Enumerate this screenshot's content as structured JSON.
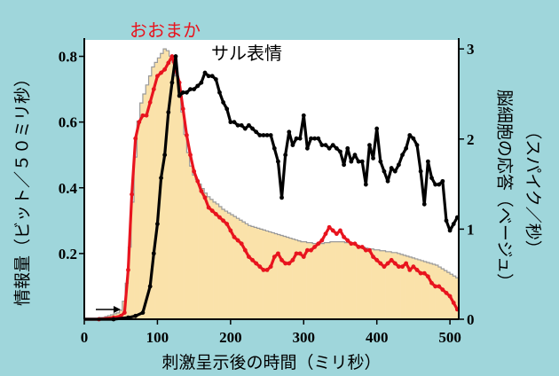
{
  "chart_data": {
    "type": "line",
    "xlabel": "刺激呈示後の時間（ミリ秒）",
    "ylabel_left": "情報量（ビット／５０ミリ秒）",
    "ylabel_right_line1": "脳細胞の応答（ベージュ）",
    "ylabel_right_line2": "（スパイク／秒）",
    "xlim": [
      0,
      512
    ],
    "ylim_left": [
      0,
      0.85
    ],
    "ylim_right": [
      0,
      3.1
    ],
    "x_ticks": [
      "0",
      "100",
      "200",
      "300",
      "400",
      "500"
    ],
    "y_ticks_left": [
      "0.2",
      "0.4",
      "0.6",
      "0.8"
    ],
    "y_ticks_right": [
      "0",
      "1",
      "2",
      "3"
    ],
    "colors": {
      "background": "#9fd6db",
      "histogram_fill": "#fae2aa",
      "histogram_edge": "#9a9a9a",
      "rough": "#e8141e",
      "fine": "#000000"
    },
    "histogram": {
      "axis": "right",
      "bin_width_ms": 4,
      "start_ms": 0,
      "values": [
        0.01,
        0.01,
        0.01,
        0.01,
        0.01,
        0.02,
        0.02,
        0.03,
        0.04,
        0.05,
        0.06,
        0.07,
        0.1,
        0.2,
        0.4,
        0.8,
        1.3,
        1.8,
        2.2,
        2.4,
        2.5,
        2.6,
        2.7,
        2.8,
        2.85,
        2.9,
        2.95,
        3.0,
        2.98,
        2.92,
        2.85,
        2.7,
        2.55,
        2.3,
        2.05,
        1.85,
        1.7,
        1.6,
        1.55,
        1.5,
        1.45,
        1.4,
        1.36,
        1.33,
        1.3,
        1.28,
        1.25,
        1.22,
        1.2,
        1.18,
        1.16,
        1.14,
        1.12,
        1.1,
        1.08,
        1.06,
        1.04,
        1.03,
        1.02,
        1.01,
        1.0,
        0.99,
        0.98,
        0.97,
        0.96,
        0.95,
        0.94,
        0.93,
        0.92,
        0.91,
        0.9,
        0.89,
        0.88,
        0.87,
        0.86,
        0.86,
        0.85,
        0.85,
        0.84,
        0.84,
        0.84,
        0.84,
        0.85,
        0.85,
        0.86,
        0.86,
        0.86,
        0.86,
        0.86,
        0.85,
        0.85,
        0.84,
        0.83,
        0.82,
        0.81,
        0.8,
        0.79,
        0.78,
        0.78,
        0.77,
        0.77,
        0.76,
        0.76,
        0.75,
        0.75,
        0.74,
        0.74,
        0.73,
        0.72,
        0.71,
        0.7,
        0.69,
        0.68,
        0.67,
        0.66,
        0.65,
        0.64,
        0.63,
        0.62,
        0.61,
        0.6,
        0.58,
        0.56,
        0.54,
        0.52,
        0.5,
        0.48,
        0.46
      ]
    },
    "series": [
      {
        "name": "おおまか",
        "axis": "left",
        "x": [
          0,
          20,
          40,
          50,
          55,
          60,
          65,
          70,
          75,
          80,
          85,
          90,
          95,
          100,
          105,
          110,
          115,
          120,
          125,
          130,
          135,
          140,
          145,
          150,
          155,
          160,
          165,
          170,
          175,
          180,
          185,
          190,
          195,
          200,
          205,
          210,
          215,
          220,
          225,
          230,
          235,
          240,
          245,
          250,
          255,
          260,
          265,
          270,
          275,
          280,
          285,
          290,
          295,
          300,
          305,
          310,
          315,
          320,
          325,
          330,
          335,
          340,
          345,
          350,
          355,
          360,
          365,
          370,
          375,
          380,
          385,
          390,
          395,
          400,
          405,
          410,
          415,
          420,
          425,
          430,
          435,
          440,
          445,
          450,
          455,
          460,
          465,
          470,
          475,
          480,
          485,
          490,
          495,
          500,
          505,
          510
        ],
        "y": [
          0.0,
          0.0,
          0.005,
          0.01,
          0.02,
          0.15,
          0.38,
          0.55,
          0.6,
          0.62,
          0.62,
          0.66,
          0.7,
          0.74,
          0.75,
          0.76,
          0.78,
          0.8,
          0.76,
          0.72,
          0.64,
          0.56,
          0.5,
          0.45,
          0.42,
          0.39,
          0.37,
          0.34,
          0.33,
          0.32,
          0.31,
          0.3,
          0.29,
          0.27,
          0.25,
          0.24,
          0.23,
          0.21,
          0.19,
          0.18,
          0.17,
          0.16,
          0.15,
          0.15,
          0.16,
          0.19,
          0.2,
          0.18,
          0.17,
          0.17,
          0.18,
          0.2,
          0.2,
          0.19,
          0.21,
          0.21,
          0.22,
          0.23,
          0.24,
          0.26,
          0.28,
          0.27,
          0.26,
          0.27,
          0.25,
          0.24,
          0.23,
          0.23,
          0.22,
          0.22,
          0.21,
          0.21,
          0.19,
          0.18,
          0.17,
          0.16,
          0.17,
          0.18,
          0.17,
          0.16,
          0.16,
          0.17,
          0.15,
          0.16,
          0.15,
          0.14,
          0.14,
          0.13,
          0.11,
          0.1,
          0.1,
          0.09,
          0.08,
          0.07,
          0.05,
          0.03
        ]
      },
      {
        "name": "サル表情",
        "axis": "left",
        "x": [
          0,
          40,
          60,
          70,
          80,
          90,
          95,
          100,
          105,
          110,
          115,
          120,
          125,
          130,
          135,
          140,
          145,
          150,
          155,
          160,
          165,
          170,
          175,
          180,
          185,
          190,
          195,
          200,
          205,
          210,
          215,
          220,
          225,
          230,
          235,
          240,
          245,
          250,
          255,
          260,
          265,
          270,
          275,
          280,
          285,
          290,
          295,
          300,
          305,
          310,
          315,
          320,
          325,
          330,
          335,
          340,
          345,
          350,
          355,
          360,
          365,
          370,
          375,
          380,
          385,
          390,
          395,
          400,
          405,
          410,
          415,
          420,
          425,
          430,
          435,
          440,
          445,
          450,
          455,
          460,
          465,
          470,
          475,
          480,
          485,
          490,
          495,
          500,
          505,
          510
        ],
        "y": [
          0.0,
          0.0,
          0.005,
          0.01,
          0.02,
          0.1,
          0.2,
          0.29,
          0.43,
          0.5,
          0.63,
          0.72,
          0.8,
          0.68,
          0.69,
          0.69,
          0.7,
          0.7,
          0.71,
          0.72,
          0.75,
          0.74,
          0.74,
          0.73,
          0.69,
          0.66,
          0.64,
          0.6,
          0.6,
          0.59,
          0.59,
          0.58,
          0.59,
          0.58,
          0.57,
          0.56,
          0.56,
          0.56,
          0.56,
          0.52,
          0.48,
          0.37,
          0.5,
          0.57,
          0.53,
          0.55,
          0.55,
          0.62,
          0.52,
          0.55,
          0.55,
          0.55,
          0.53,
          0.53,
          0.52,
          0.53,
          0.52,
          0.51,
          0.47,
          0.52,
          0.48,
          0.5,
          0.48,
          0.48,
          0.41,
          0.53,
          0.49,
          0.58,
          0.48,
          0.45,
          0.42,
          0.46,
          0.45,
          0.47,
          0.5,
          0.52,
          0.56,
          0.55,
          0.53,
          0.45,
          0.35,
          0.48,
          0.43,
          0.41,
          0.41,
          0.42,
          0.3,
          0.27,
          0.29,
          0.31
        ]
      }
    ]
  }
}
